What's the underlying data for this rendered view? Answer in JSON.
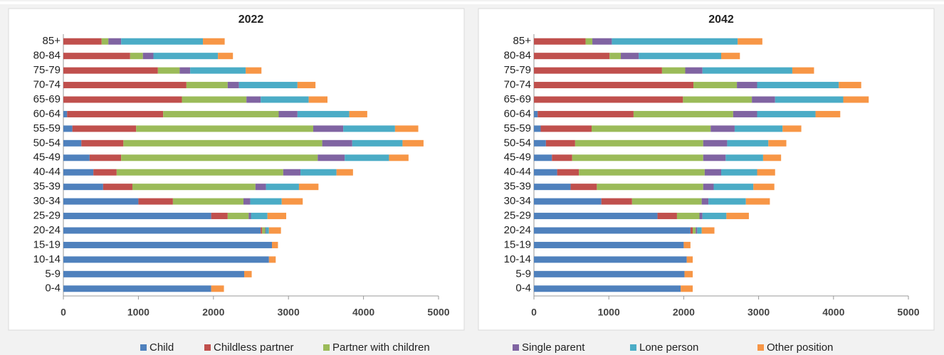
{
  "chart_data": [
    {
      "type": "bar",
      "horizontal": true,
      "stacked": true,
      "title": "2022",
      "categories": [
        "85+",
        "80-84",
        "75-79",
        "70-74",
        "65-69",
        "60-64",
        "55-59",
        "50-54",
        "45-49",
        "40-44",
        "35-39",
        "30-34",
        "25-29",
        "20-24",
        "15-19",
        "10-14",
        "5-9",
        "0-4"
      ],
      "series": [
        {
          "name": "Child",
          "color": "#4f81bd",
          "values": [
            0,
            0,
            0,
            0,
            0,
            50,
            120,
            240,
            350,
            400,
            530,
            1000,
            1970,
            2630,
            2780,
            2740,
            2410,
            1970
          ]
        },
        {
          "name": "Childless partner",
          "color": "#c0504d",
          "values": [
            510,
            890,
            1260,
            1640,
            1580,
            1280,
            850,
            560,
            420,
            310,
            390,
            460,
            220,
            20,
            0,
            0,
            0,
            0
          ]
        },
        {
          "name": "Partner with children",
          "color": "#9bbb59",
          "values": [
            90,
            170,
            290,
            550,
            860,
            1540,
            2360,
            2650,
            2620,
            2220,
            1640,
            940,
            280,
            40,
            0,
            0,
            0,
            0
          ]
        },
        {
          "name": "Single parent",
          "color": "#8064a2",
          "values": [
            170,
            140,
            140,
            150,
            190,
            250,
            400,
            400,
            360,
            230,
            140,
            90,
            30,
            10,
            0,
            0,
            0,
            0
          ]
        },
        {
          "name": "Lone person",
          "color": "#4bacc6",
          "values": [
            1090,
            860,
            740,
            780,
            640,
            690,
            690,
            670,
            590,
            480,
            440,
            420,
            220,
            40,
            0,
            0,
            0,
            0
          ]
        },
        {
          "name": "Other position",
          "color": "#f79646",
          "values": [
            290,
            200,
            210,
            240,
            250,
            240,
            310,
            280,
            260,
            220,
            260,
            280,
            250,
            160,
            80,
            90,
            100,
            170
          ]
        }
      ],
      "xlim": [
        0,
        5000
      ],
      "xticks": [
        0,
        1000,
        2000,
        3000,
        4000,
        5000
      ],
      "grid": false,
      "legend": "bottom"
    },
    {
      "type": "bar",
      "horizontal": true,
      "stacked": true,
      "title": "2042",
      "categories": [
        "85+",
        "80-84",
        "75-79",
        "70-74",
        "65-69",
        "60-64",
        "55-59",
        "50-54",
        "45-49",
        "40-44",
        "35-39",
        "30-34",
        "25-29",
        "20-24",
        "15-19",
        "10-14",
        "5-9",
        "0-4"
      ],
      "series": [
        {
          "color": "#4f81bd",
          "values": [
            0,
            0,
            0,
            0,
            0,
            50,
            90,
            160,
            240,
            310,
            490,
            900,
            1650,
            2090,
            2000,
            2040,
            2010,
            1960
          ]
        },
        {
          "color": "#c0504d",
          "values": [
            690,
            1010,
            1710,
            2130,
            1990,
            1280,
            680,
            390,
            270,
            290,
            350,
            410,
            260,
            30,
            0,
            0,
            0,
            0
          ]
        },
        {
          "color": "#9bbb59",
          "values": [
            90,
            150,
            310,
            580,
            920,
            1330,
            1590,
            1710,
            1750,
            1680,
            1420,
            930,
            300,
            40,
            0,
            0,
            0,
            0
          ]
        },
        {
          "color": "#8064a2",
          "values": [
            260,
            240,
            230,
            270,
            310,
            320,
            320,
            320,
            300,
            220,
            140,
            90,
            40,
            20,
            0,
            0,
            0,
            0
          ]
        },
        {
          "color": "#4bacc6",
          "values": [
            1680,
            1100,
            1200,
            1090,
            910,
            780,
            640,
            550,
            500,
            480,
            530,
            500,
            320,
            60,
            0,
            0,
            0,
            0
          ]
        },
        {
          "color": "#f79646",
          "values": [
            330,
            250,
            290,
            300,
            340,
            330,
            250,
            240,
            240,
            240,
            280,
            320,
            300,
            170,
            90,
            80,
            110,
            160
          ]
        }
      ],
      "xlim": [
        0,
        5000
      ],
      "xticks": [
        0,
        1000,
        2000,
        3000,
        4000,
        5000
      ],
      "grid": false
    }
  ]
}
